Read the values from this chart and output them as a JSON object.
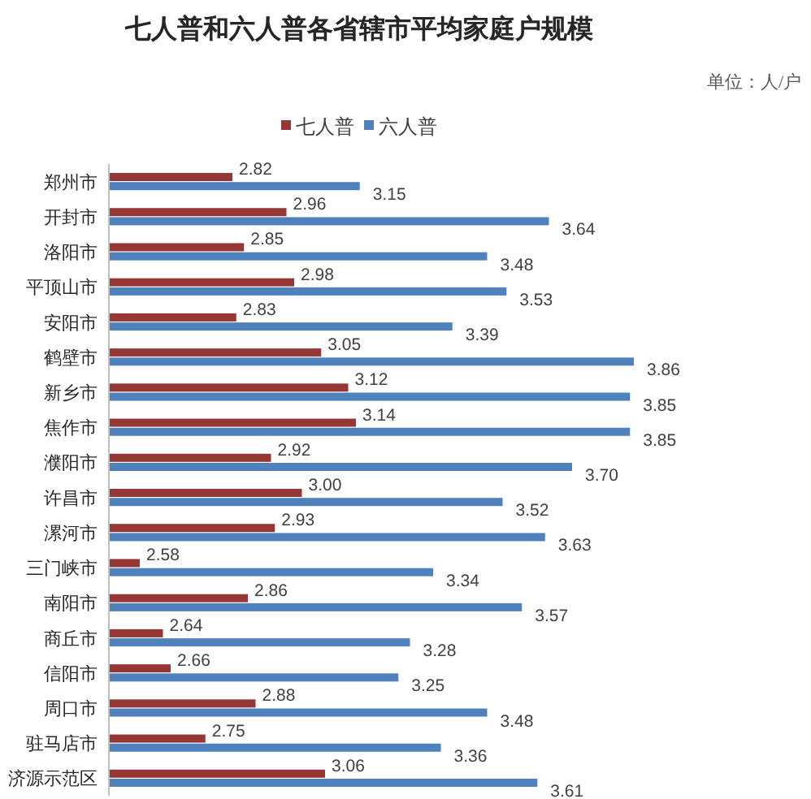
{
  "chart_data": {
    "type": "bar",
    "orientation": "horizontal",
    "title": "七人普和六人普各省辖市平均家庭户规模",
    "annotations": [
      "单位：人/户"
    ],
    "legend": "top",
    "tick_labels": "y",
    "xlim": [
      2.5,
      3.86
    ],
    "categories": [
      "郑州市",
      "开封市",
      "洛阳市",
      "平顶山市",
      "安阳市",
      "鹤壁市",
      "新乡市",
      "焦作市",
      "濮阳市",
      "许昌市",
      "漯河市",
      "三门峡市",
      "南阳市",
      "商丘市",
      "信阳市",
      "周口市",
      "驻马店市",
      "济源示范区"
    ],
    "series": [
      {
        "name": "七人普",
        "color": "#953735",
        "values": [
          2.82,
          2.96,
          2.85,
          2.98,
          2.83,
          3.05,
          3.12,
          3.14,
          2.92,
          3.0,
          2.93,
          2.58,
          2.86,
          2.64,
          2.66,
          2.88,
          2.75,
          3.06
        ],
        "value_labels": [
          "2.82",
          "2.96",
          "2.85",
          "2.98",
          "2.83",
          "3.05",
          "3.12",
          "3.14",
          "2.92",
          "3.00",
          "2.93",
          "2.58",
          "2.86",
          "2.64",
          "2.66",
          "2.88",
          "2.75",
          "3.06"
        ]
      },
      {
        "name": "六人普",
        "color": "#4f81bd",
        "values": [
          3.15,
          3.64,
          3.48,
          3.53,
          3.39,
          3.86,
          3.85,
          3.85,
          3.7,
          3.52,
          3.63,
          3.34,
          3.57,
          3.28,
          3.25,
          3.48,
          3.36,
          3.61
        ],
        "value_labels": [
          "3.15",
          "3.64",
          "3.48",
          "3.53",
          "3.39",
          "3.86",
          "3.85",
          "3.85",
          "3.70",
          "3.52",
          "3.63",
          "3.34",
          "3.57",
          "3.28",
          "3.25",
          "3.48",
          "3.36",
          "3.61"
        ]
      }
    ]
  }
}
